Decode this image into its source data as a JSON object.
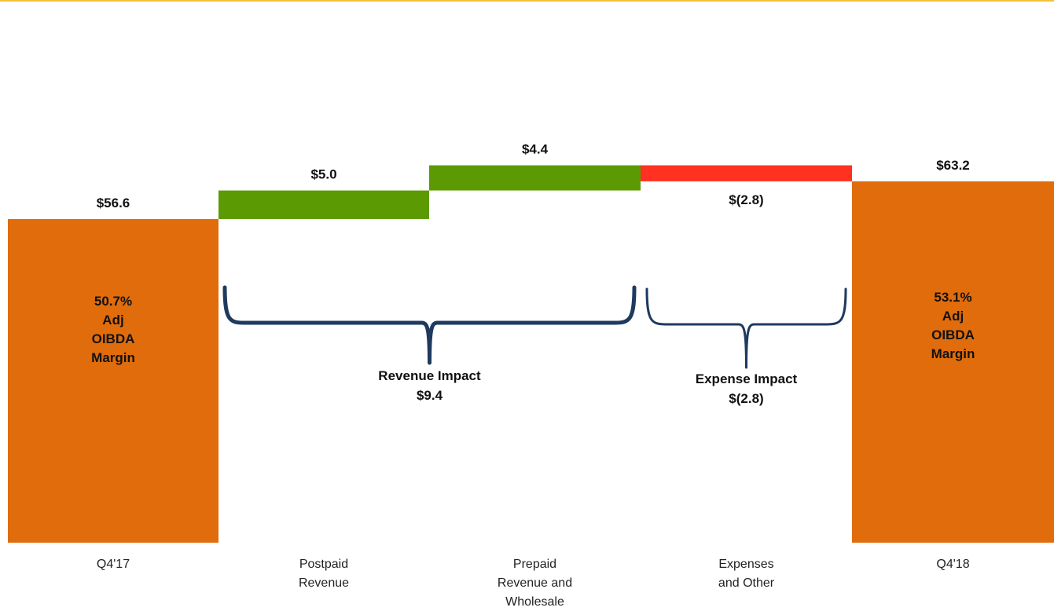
{
  "chart_data": {
    "type": "bar",
    "variant": "waterfall",
    "categories": [
      "Q4'17",
      "Postpaid\nRevenue",
      "Prepaid\nRevenue and\nWholesale",
      "Expenses\nand Other",
      "Q4'18"
    ],
    "bars": [
      {
        "kind": "total",
        "start": 0,
        "value": 56.6,
        "label": "$56.6",
        "inner_text": [
          "50.7%",
          "Adj",
          "OIBDA",
          "Margin"
        ]
      },
      {
        "kind": "increase",
        "start": 56.6,
        "value": 5.0,
        "label": "$5.0"
      },
      {
        "kind": "increase",
        "start": 61.6,
        "value": 4.4,
        "label": "$4.4"
      },
      {
        "kind": "decrease",
        "start": 66.0,
        "value": -2.8,
        "label": "$(2.8)"
      },
      {
        "kind": "total",
        "start": 0,
        "value": 63.2,
        "label": "$63.2",
        "inner_text": [
          "53.1%",
          "Adj",
          "OIBDA",
          "Margin"
        ]
      }
    ],
    "annotations": [
      {
        "kind": "brace",
        "from_category": 1,
        "to_category": 2,
        "title": "Revenue Impact",
        "value": "$9.4"
      },
      {
        "kind": "brace",
        "from_category": 3,
        "to_category": 3,
        "title": "Expense Impact",
        "value": "$(2.8)"
      }
    ],
    "colors": {
      "total": "#e06c0c",
      "increase": "#5c9a04",
      "decrease": "#ff3120",
      "brace": "#1f3a5f",
      "top_rule": "#f3c13a"
    },
    "ylim": [
      0,
      70
    ],
    "title": "",
    "xlabel": "",
    "ylabel": "",
    "grid": false,
    "legend": "none"
  }
}
